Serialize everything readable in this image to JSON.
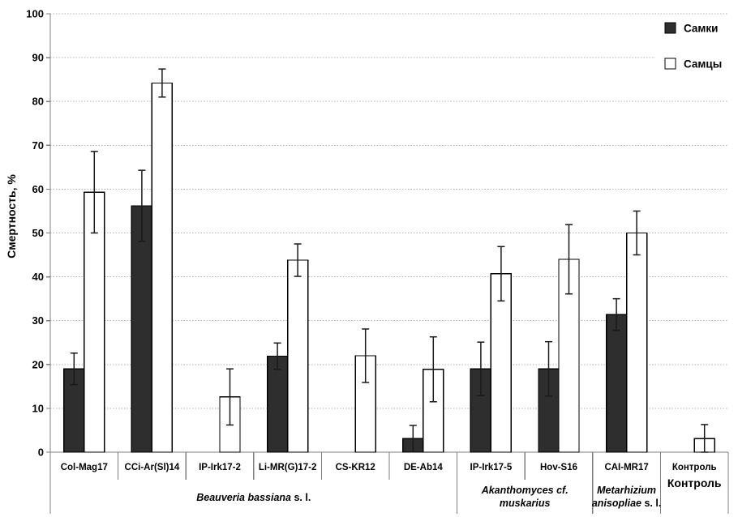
{
  "chart_data": {
    "type": "bar",
    "title": "",
    "ylabel": "Смертность, %",
    "ylim": [
      0,
      100
    ],
    "ytick_step": 10,
    "grid": "horizontal-dotted",
    "legend_position": "top-right",
    "categories": [
      "Col-Mag17",
      "CCi-Ar(Sl)14",
      "IP-Irk17-2",
      "Li-MR(G)17-2",
      "CS-KR12",
      "DE-Ab14",
      "IP-Irk17-5",
      "Hov-S16",
      "CAI-MR17",
      "Контроль"
    ],
    "series": [
      {
        "name": "Самки",
        "fill": "#2e2e2e",
        "values": [
          19,
          56.2,
          null,
          21.9,
          null,
          3.1,
          19,
          19,
          31.4,
          null
        ],
        "errors": [
          3.6,
          8.1,
          null,
          3,
          null,
          3,
          6.1,
          6.2,
          3.6,
          null
        ]
      },
      {
        "name": "Самцы",
        "fill": "#ffffff",
        "values": [
          59.3,
          84.2,
          12.6,
          43.8,
          22,
          18.9,
          40.7,
          44,
          50,
          3.1
        ],
        "errors": [
          9.3,
          3.2,
          6.4,
          3.7,
          6.1,
          7.4,
          6.2,
          7.9,
          5,
          3.2
        ]
      }
    ],
    "category_groups": [
      {
        "label": "Beauveria bassiana s. l.",
        "span": [
          0,
          5
        ],
        "lines": [
          [
            {
              "text": "Beauveria bassiana",
              "italic": true
            },
            {
              "text": " s. l.",
              "italic": false
            }
          ]
        ]
      },
      {
        "label": "Akanthomyces cf. muskarius",
        "span": [
          6,
          7
        ],
        "lines": [
          [
            {
              "text": "Akanthomyces cf.",
              "italic": true
            }
          ],
          [
            {
              "text": "muskarius",
              "italic": true
            }
          ]
        ]
      },
      {
        "label": "Metarhizium anisopliae s. l.",
        "span": [
          8,
          8
        ],
        "lines": [
          [
            {
              "text": "Metarhizium",
              "italic": true
            }
          ],
          [
            {
              "text": "anisopliae",
              "italic": true
            },
            {
              "text": " s. l.",
              "italic": false
            }
          ]
        ]
      },
      {
        "label": "Контроль",
        "span": [
          9,
          9
        ],
        "tall": true,
        "lines": [
          [
            {
              "text": "Контроль",
              "italic": false
            }
          ]
        ]
      }
    ],
    "colors": {
      "background": "#ffffff",
      "axis": "#7f7f7f",
      "grid": "#b3b3b3",
      "bar_stroke": "#000000",
      "error_bar": "#1a1a1a",
      "text": "#000000"
    }
  }
}
